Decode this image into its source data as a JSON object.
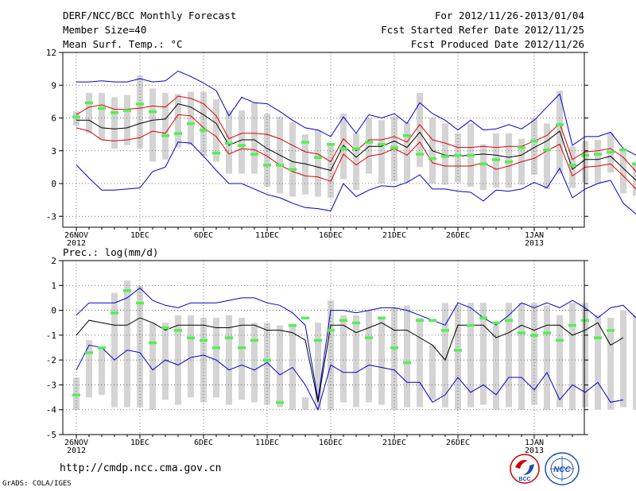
{
  "header": {
    "title": "DERF/NCC/BCC Monthly Forecast",
    "member_size": "Member Size=40",
    "variable": "Mean Surf. Temp.: °C",
    "period": "For 2012/11/26-2013/01/04",
    "fcst_started": "Fcst Started Refer Date 2012/11/25",
    "fcst_produced": "Fcst Produced Date 2012/11/26"
  },
  "footer": {
    "url": "http://cmdp.ncc.cma.gov.cn",
    "grads": "GrADS: COLA/IGES",
    "logo_left_text": "BCC",
    "logo_right_text": "NCC"
  },
  "colors": {
    "max_min_line": "#0000cc",
    "spread_line": "#dd0000",
    "mean_line": "#000000",
    "box": "#d4d4d4",
    "observed": "#55ee55"
  },
  "chart_data": [
    {
      "type": "line",
      "title": "Mean Surf. Temp.: °C",
      "ylim": [
        -4,
        12
      ],
      "yticks": [
        -3,
        0,
        3,
        6,
        9,
        12
      ],
      "x_tick_labels": [
        "26NOV\n2012",
        "1DEC",
        "6DEC",
        "11DEC",
        "16DEC",
        "21DEC",
        "26DEC",
        "1JAN\n2013"
      ],
      "x_tick_days": [
        0,
        5,
        10,
        15,
        20,
        25,
        30,
        36
      ],
      "series": [
        {
          "name": "max",
          "values": [
            9.3,
            9.3,
            9.4,
            9.3,
            9.3,
            9.6,
            9.3,
            9.4,
            10.3,
            9.8,
            9.2,
            8.5,
            6.2,
            7.9,
            7.4,
            7.3,
            6.6,
            5.8,
            5.1,
            4.9,
            4.3,
            6.1,
            4.6,
            6.3,
            6.0,
            6.4,
            5.5,
            7.4,
            6.4,
            5.8,
            4.9,
            5.8,
            4.9,
            5.0,
            5.4,
            5.0,
            5.8,
            7.0,
            8.2,
            3.5,
            4.3,
            4.3,
            4.7,
            3.2,
            2.6,
            2.5
          ]
        },
        {
          "name": "upper",
          "values": [
            6.3,
            7.0,
            7.2,
            6.8,
            6.8,
            6.9,
            7.1,
            7.0,
            8.0,
            7.8,
            7.3,
            6.2,
            4.1,
            4.6,
            4.6,
            4.5,
            4.1,
            3.5,
            2.9,
            2.7,
            2.0,
            4.1,
            3.0,
            4.0,
            4.0,
            4.3,
            3.8,
            5.4,
            4.0,
            3.7,
            3.3,
            3.3,
            3.4,
            3.3,
            3.4,
            3.4,
            3.9,
            4.4,
            5.5,
            2.2,
            2.9,
            3.0,
            3.2,
            2.4,
            1.1,
            0.9
          ]
        },
        {
          "name": "mean",
          "values": [
            5.8,
            5.8,
            5.1,
            5.0,
            5.1,
            5.5,
            5.8,
            5.9,
            7.3,
            7.0,
            6.3,
            5.5,
            3.5,
            4.0,
            4.0,
            3.2,
            2.6,
            2.0,
            1.8,
            1.5,
            1.2,
            3.5,
            2.4,
            3.4,
            3.4,
            3.9,
            3.3,
            4.7,
            3.0,
            2.6,
            2.5,
            2.6,
            2.7,
            2.6,
            2.4,
            2.6,
            3.3,
            3.9,
            4.8,
            1.3,
            2.2,
            2.2,
            2.5,
            1.4,
            0.3,
            0.0
          ]
        },
        {
          "name": "lower",
          "values": [
            5.1,
            4.8,
            4.0,
            3.9,
            4.0,
            4.2,
            4.8,
            4.6,
            6.3,
            6.2,
            5.1,
            4.3,
            2.7,
            3.2,
            3.1,
            2.5,
            1.7,
            1.1,
            0.7,
            0.6,
            0.2,
            2.7,
            1.7,
            2.5,
            2.7,
            3.2,
            2.6,
            3.8,
            1.9,
            1.6,
            1.6,
            1.6,
            1.9,
            1.3,
            1.6,
            2.0,
            2.3,
            3.0,
            3.6,
            0.7,
            1.5,
            1.6,
            1.8,
            0.7,
            -0.5,
            -0.7
          ]
        },
        {
          "name": "min",
          "values": [
            1.7,
            0.5,
            -0.6,
            -0.6,
            -0.5,
            -0.4,
            1.1,
            1.5,
            3.8,
            3.7,
            2.5,
            1.2,
            0.0,
            0.0,
            -0.5,
            -1.0,
            -1.3,
            -1.8,
            -2.2,
            -2.3,
            -2.5,
            0.0,
            -1.2,
            -0.6,
            -0.2,
            -0.3,
            0.1,
            0.8,
            -0.5,
            -0.5,
            -0.7,
            -0.8,
            -1.6,
            -0.6,
            -0.7,
            -0.5,
            0.1,
            -0.4,
            1.4,
            -1.3,
            -0.5,
            0.0,
            0.3,
            -1.8,
            -2.8,
            -3.0
          ]
        }
      ],
      "boxes": [
        {
          "lo": 5.3,
          "hi": 6.6
        },
        {
          "lo": 4.6,
          "hi": 8.3
        },
        {
          "lo": 4.0,
          "hi": 8.3
        },
        {
          "lo": 3.2,
          "hi": 7.9
        },
        {
          "lo": 3.5,
          "hi": 8.1
        },
        {
          "lo": 3.2,
          "hi": 9.9
        },
        {
          "lo": 2.0,
          "hi": 8.7
        },
        {
          "lo": 2.2,
          "hi": 8.3
        },
        {
          "lo": 3.3,
          "hi": 8.2
        },
        {
          "lo": 3.5,
          "hi": 8.4
        },
        {
          "lo": 2.5,
          "hi": 8.4
        },
        {
          "lo": 2.0,
          "hi": 7.7
        },
        {
          "lo": 0.9,
          "hi": 6.7
        },
        {
          "lo": 0.9,
          "hi": 6.7
        },
        {
          "lo": 0.9,
          "hi": 7.4
        },
        {
          "lo": -0.3,
          "hi": 6.4
        },
        {
          "lo": -0.9,
          "hi": 6.1
        },
        {
          "lo": -1.2,
          "hi": 5.6
        },
        {
          "lo": -1.0,
          "hi": 4.5
        },
        {
          "lo": -1.2,
          "hi": 4.9
        },
        {
          "lo": -1.3,
          "hi": 3.5
        },
        {
          "lo": 0.4,
          "hi": 6.4
        },
        {
          "lo": -0.6,
          "hi": 4.6
        },
        {
          "lo": 0.9,
          "hi": 6.0
        },
        {
          "lo": 0.0,
          "hi": 5.8
        },
        {
          "lo": 0.2,
          "hi": 6.1
        },
        {
          "lo": 0.1,
          "hi": 5.6
        },
        {
          "lo": 1.5,
          "hi": 8.3
        },
        {
          "lo": 0.0,
          "hi": 6.0
        },
        {
          "lo": -0.1,
          "hi": 5.5
        },
        {
          "lo": 0.1,
          "hi": 4.6
        },
        {
          "lo": -0.3,
          "hi": 5.5
        },
        {
          "lo": -0.6,
          "hi": 3.6
        },
        {
          "lo": -0.4,
          "hi": 4.6
        },
        {
          "lo": -0.4,
          "hi": 4.6
        },
        {
          "lo": -0.1,
          "hi": 4.1
        },
        {
          "lo": 0.8,
          "hi": 6.0
        },
        {
          "lo": -0.5,
          "hi": 5.5
        },
        {
          "lo": 0.9,
          "hi": 8.5
        },
        {
          "lo": -0.4,
          "hi": 3.4
        },
        {
          "lo": 0.1,
          "hi": 3.9
        },
        {
          "lo": 0.0,
          "hi": 4.0
        },
        {
          "lo": 1.0,
          "hi": 4.6
        },
        {
          "lo": -0.9,
          "hi": 3.0
        },
        {
          "lo": -1.1,
          "hi": 2.0
        },
        {
          "lo": -2.1,
          "hi": 3.0
        }
      ],
      "observed": [
        6.1,
        7.4,
        6.9,
        6.5,
        6.7,
        7.3,
        6.6,
        4.4,
        4.6,
        5.5,
        4.9,
        2.8,
        3.7,
        3.5,
        2.7,
        1.7,
        1.7,
        1.3,
        3.8,
        2.4,
        3.6,
        3.2,
        3.2,
        3.8,
        3.6,
        3.3,
        4.4,
        2.7,
        2.3,
        2.5,
        2.6,
        2.6,
        1.8,
        2.2,
        2.0,
        3.3,
        3.9,
        3.1,
        5.4,
        1.7,
        2.6,
        2.7,
        2.9,
        3.1,
        1.8,
        0.7,
        0.7
      ]
    },
    {
      "type": "line",
      "title": "Prec.: log(mm/d)",
      "ylim": [
        -5,
        2
      ],
      "yticks": [
        -5,
        -4,
        -3,
        -2,
        -1,
        0,
        1,
        2
      ],
      "x_tick_labels": [
        "26NOV\n2012",
        "1DEC",
        "6DEC",
        "11DEC",
        "16DEC",
        "21DEC",
        "26DEC",
        "1JAN\n2013"
      ],
      "x_tick_days": [
        0,
        5,
        10,
        15,
        20,
        25,
        30,
        36
      ],
      "series": [
        {
          "name": "max",
          "values": [
            -0.2,
            0.3,
            0.3,
            0.3,
            0.5,
            0.9,
            0.4,
            0.2,
            0.1,
            0.3,
            0.3,
            0.3,
            0.4,
            0.5,
            0.5,
            0.3,
            0.2,
            -0.1,
            -0.6,
            -3.6,
            0.0,
            0.0,
            -0.1,
            0.0,
            0.1,
            0.1,
            0.0,
            -0.2,
            -0.4,
            -0.6,
            0.3,
            0.1,
            -0.3,
            -0.6,
            -0.2,
            0.3,
            0.1,
            0.3,
            0.1,
            0.4,
            0.1,
            -0.3,
            0.1,
            0.2,
            -0.3
          ]
        },
        {
          "name": "mean",
          "values": [
            -1.0,
            -0.4,
            -0.5,
            -0.6,
            -0.6,
            -0.3,
            -0.5,
            -0.8,
            -0.6,
            -0.6,
            -0.6,
            -0.7,
            -0.7,
            -0.6,
            -0.6,
            -0.8,
            -0.8,
            -0.9,
            -1.2,
            -3.7,
            -0.6,
            -0.6,
            -0.9,
            -0.7,
            -0.5,
            -0.8,
            -0.8,
            -1.1,
            -1.4,
            -2.0,
            -0.6,
            -0.6,
            -0.6,
            -1.1,
            -0.9,
            -0.6,
            -0.8,
            -0.6,
            -0.6,
            -1.0,
            -0.8,
            -0.5,
            -1.4,
            -1.1
          ]
        },
        {
          "name": "min",
          "values": [
            -2.4,
            -1.4,
            -1.5,
            -2.0,
            -1.6,
            -1.7,
            -2.4,
            -2.0,
            -2.2,
            -1.9,
            -1.8,
            -2.0,
            -2.4,
            -2.2,
            -2.4,
            -2.1,
            -2.6,
            -2.3,
            -3.0,
            -4.0,
            -2.2,
            -2.5,
            -2.5,
            -2.2,
            -2.3,
            -2.4,
            -2.9,
            -2.9,
            -3.7,
            -3.4,
            -2.7,
            -3.3,
            -3.0,
            -3.4,
            -2.7,
            -2.7,
            -3.2,
            -2.5,
            -3.6,
            -3.0,
            -3.3,
            -2.9,
            -3.7,
            -3.6
          ]
        }
      ],
      "boxes": [
        {
          "lo": -4.0,
          "hi": -2.7
        },
        {
          "lo": -3.5,
          "hi": -1.2
        },
        {
          "lo": -3.4,
          "hi": -1.5
        },
        {
          "lo": -3.9,
          "hi": 0.7
        },
        {
          "lo": -3.9,
          "hi": 1.2
        },
        {
          "lo": -3.9,
          "hi": 1.0
        },
        {
          "lo": -4.0,
          "hi": -0.5
        },
        {
          "lo": -3.6,
          "hi": -0.5
        },
        {
          "lo": -3.8,
          "hi": -0.2
        },
        {
          "lo": -3.5,
          "hi": -0.2
        },
        {
          "lo": -3.7,
          "hi": -0.3
        },
        {
          "lo": -3.5,
          "hi": -0.3
        },
        {
          "lo": -3.8,
          "hi": -0.2
        },
        {
          "lo": -3.6,
          "hi": -0.3
        },
        {
          "lo": -3.7,
          "hi": -0.5
        },
        {
          "lo": -3.8,
          "hi": -0.5
        },
        {
          "lo": -3.9,
          "hi": -0.6
        },
        {
          "lo": -4.0,
          "hi": -0.6
        },
        {
          "lo": -4.0,
          "hi": -3.5
        },
        {
          "lo": -4.0,
          "hi": -0.5
        },
        {
          "lo": -4.0,
          "hi": 0.4
        },
        {
          "lo": -3.7,
          "hi": -0.2
        },
        {
          "lo": -3.9,
          "hi": -0.2
        },
        {
          "lo": -3.7,
          "hi": 0.0
        },
        {
          "lo": -3.8,
          "hi": -0.3
        },
        {
          "lo": -4.0,
          "hi": 0.1
        },
        {
          "lo": -3.9,
          "hi": 0.2
        },
        {
          "lo": -3.9,
          "hi": -0.3
        },
        {
          "lo": -3.6,
          "hi": -1.4
        },
        {
          "lo": -3.9,
          "hi": 0.3
        },
        {
          "lo": -4.0,
          "hi": 0.2
        },
        {
          "lo": -3.9,
          "hi": 0.3
        },
        {
          "lo": -3.8,
          "hi": 0.3
        },
        {
          "lo": -4.0,
          "hi": -0.6
        },
        {
          "lo": -3.9,
          "hi": 0.3
        },
        {
          "lo": -4.0,
          "hi": 0.3
        },
        {
          "lo": -3.8,
          "hi": 0.3
        },
        {
          "lo": -4.0,
          "hi": 0.2
        },
        {
          "lo": -3.9,
          "hi": -0.2
        },
        {
          "lo": -4.0,
          "hi": 0.3
        },
        {
          "lo": -3.9,
          "hi": 0.3
        },
        {
          "lo": -4.0,
          "hi": -0.2
        },
        {
          "lo": -4.0,
          "hi": -0.3
        },
        {
          "lo": -3.9,
          "hi": 0.0
        },
        {
          "lo": -4.0,
          "hi": -0.2
        }
      ],
      "observed": [
        -3.4,
        -1.7,
        -1.5,
        -0.1,
        0.8,
        0.3,
        -1.3,
        -0.7,
        -0.8,
        -1.1,
        -1.2,
        -1.5,
        -1.1,
        -1.5,
        -1.2,
        -2.0,
        -3.7,
        -0.6,
        -0.3,
        -1.2,
        -0.8,
        -0.4,
        -0.5,
        -1.1,
        -0.3,
        -1.5,
        -2.1,
        -0.4,
        -0.4,
        -0.8,
        -1.6,
        -0.6,
        -0.3,
        -0.5,
        -0.4,
        -0.9,
        -1.0,
        -0.9,
        -1.2,
        -0.6,
        -0.4,
        -1.1,
        -0.8
      ]
    }
  ]
}
